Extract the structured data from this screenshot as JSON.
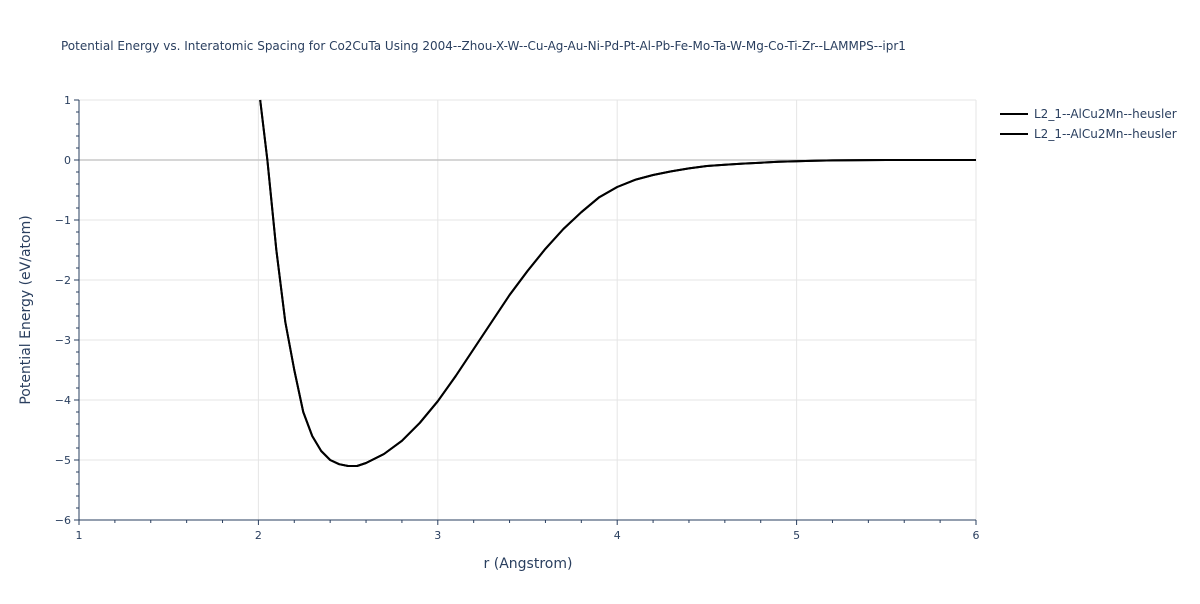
{
  "chart_data": {
    "type": "line",
    "title": "Potential Energy vs. Interatomic Spacing for Co2CuTa Using 2004--Zhou-X-W--Cu-Ag-Au-Ni-Pd-Pt-Al-Pb-Fe-Mo-Ta-W-Mg-Co-Ti-Zr--LAMMPS--ipr1",
    "xlabel": "r (Angstrom)",
    "ylabel": "Potential Energy (eV/atom)",
    "xlim": [
      1,
      6
    ],
    "ylim": [
      -6,
      1
    ],
    "xticks": [
      1,
      2,
      3,
      4,
      5,
      6
    ],
    "yticks": [
      1,
      0,
      -1,
      -2,
      -3,
      -4,
      -5,
      -6
    ],
    "ytick_labels": [
      "1",
      "0",
      "−1",
      "−2",
      "−3",
      "−4",
      "−5",
      "−6"
    ],
    "grid": true,
    "legend_position": "top-right",
    "series": [
      {
        "name": "L2_1--AlCu2Mn--heusler",
        "color": "#000000",
        "x": [
          2.01,
          2.05,
          2.1,
          2.15,
          2.2,
          2.25,
          2.3,
          2.35,
          2.4,
          2.45,
          2.5,
          2.53,
          2.55,
          2.6,
          2.7,
          2.8,
          2.9,
          3.0,
          3.1,
          3.2,
          3.3,
          3.4,
          3.5,
          3.6,
          3.7,
          3.8,
          3.9,
          4.0,
          4.1,
          4.2,
          4.3,
          4.4,
          4.5,
          4.6,
          4.7,
          4.8,
          4.9,
          5.0,
          5.1,
          5.2,
          5.3,
          5.4,
          5.5,
          6.0
        ],
        "y": [
          1.0,
          0.0,
          -1.5,
          -2.7,
          -3.5,
          -4.2,
          -4.6,
          -4.85,
          -5.0,
          -5.07,
          -5.1,
          -5.1,
          -5.1,
          -5.05,
          -4.9,
          -4.68,
          -4.38,
          -4.02,
          -3.6,
          -3.15,
          -2.7,
          -2.25,
          -1.85,
          -1.48,
          -1.15,
          -0.87,
          -0.62,
          -0.45,
          -0.33,
          -0.25,
          -0.19,
          -0.14,
          -0.1,
          -0.08,
          -0.06,
          -0.045,
          -0.03,
          -0.02,
          -0.012,
          -0.007,
          -0.004,
          -0.002,
          -0.001,
          0.0
        ]
      },
      {
        "name": "L2_1--AlCu2Mn--heusler",
        "color": "#000000",
        "x": [
          2.01,
          2.05,
          2.1,
          2.15,
          2.2,
          2.25,
          2.3,
          2.35,
          2.4,
          2.45,
          2.5,
          2.53,
          2.55,
          2.6,
          2.7,
          2.8,
          2.9,
          3.0,
          3.1,
          3.2,
          3.3,
          3.4,
          3.5,
          3.6,
          3.7,
          3.8,
          3.9,
          4.0,
          4.1,
          4.2,
          4.3,
          4.4,
          4.5,
          4.6,
          4.7,
          4.8,
          4.9,
          5.0,
          5.1,
          5.2,
          5.3,
          5.4,
          5.5,
          6.0
        ],
        "y": [
          1.0,
          0.0,
          -1.5,
          -2.7,
          -3.5,
          -4.2,
          -4.6,
          -4.85,
          -5.0,
          -5.07,
          -5.1,
          -5.1,
          -5.1,
          -5.05,
          -4.9,
          -4.68,
          -4.38,
          -4.02,
          -3.6,
          -3.15,
          -2.7,
          -2.25,
          -1.85,
          -1.48,
          -1.15,
          -0.87,
          -0.62,
          -0.45,
          -0.33,
          -0.25,
          -0.19,
          -0.14,
          -0.1,
          -0.08,
          -0.06,
          -0.045,
          -0.03,
          -0.02,
          -0.012,
          -0.007,
          -0.004,
          -0.002,
          -0.001,
          0.0
        ]
      }
    ]
  }
}
